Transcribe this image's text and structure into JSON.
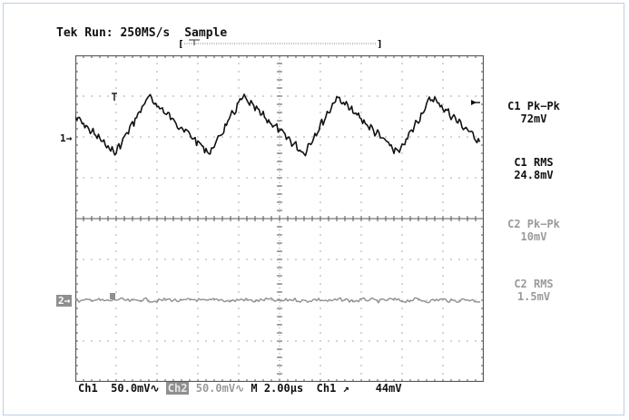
{
  "header": {
    "run_label": "Tek Run: 250MS/s",
    "mode_label": "Sample"
  },
  "channel1": {
    "marker": "1",
    "measurements": [
      {
        "label": "C1 Pk−Pk",
        "value": "72mV"
      },
      {
        "label": "C1 RMS",
        "value": "24.8mV"
      }
    ]
  },
  "channel2": {
    "marker": "2",
    "measurements": [
      {
        "label": "C2 Pk−Pk",
        "value": "10mV"
      },
      {
        "label": "C2 RMS",
        "value": "1.5mV"
      }
    ]
  },
  "footer": {
    "ch1_label": "Ch1",
    "ch1_scale": "50.0mV",
    "ch2_label": "Ch2",
    "ch2_scale": "50.0mV",
    "timebase": "M 2.00µs",
    "trigger_source": "Ch1",
    "trigger_level": "44mV"
  },
  "colors": {
    "grid": "#555555",
    "ch1_trace": "#111111",
    "ch2_trace": "#8f8f8f",
    "frame": "#b9cfe3"
  }
}
